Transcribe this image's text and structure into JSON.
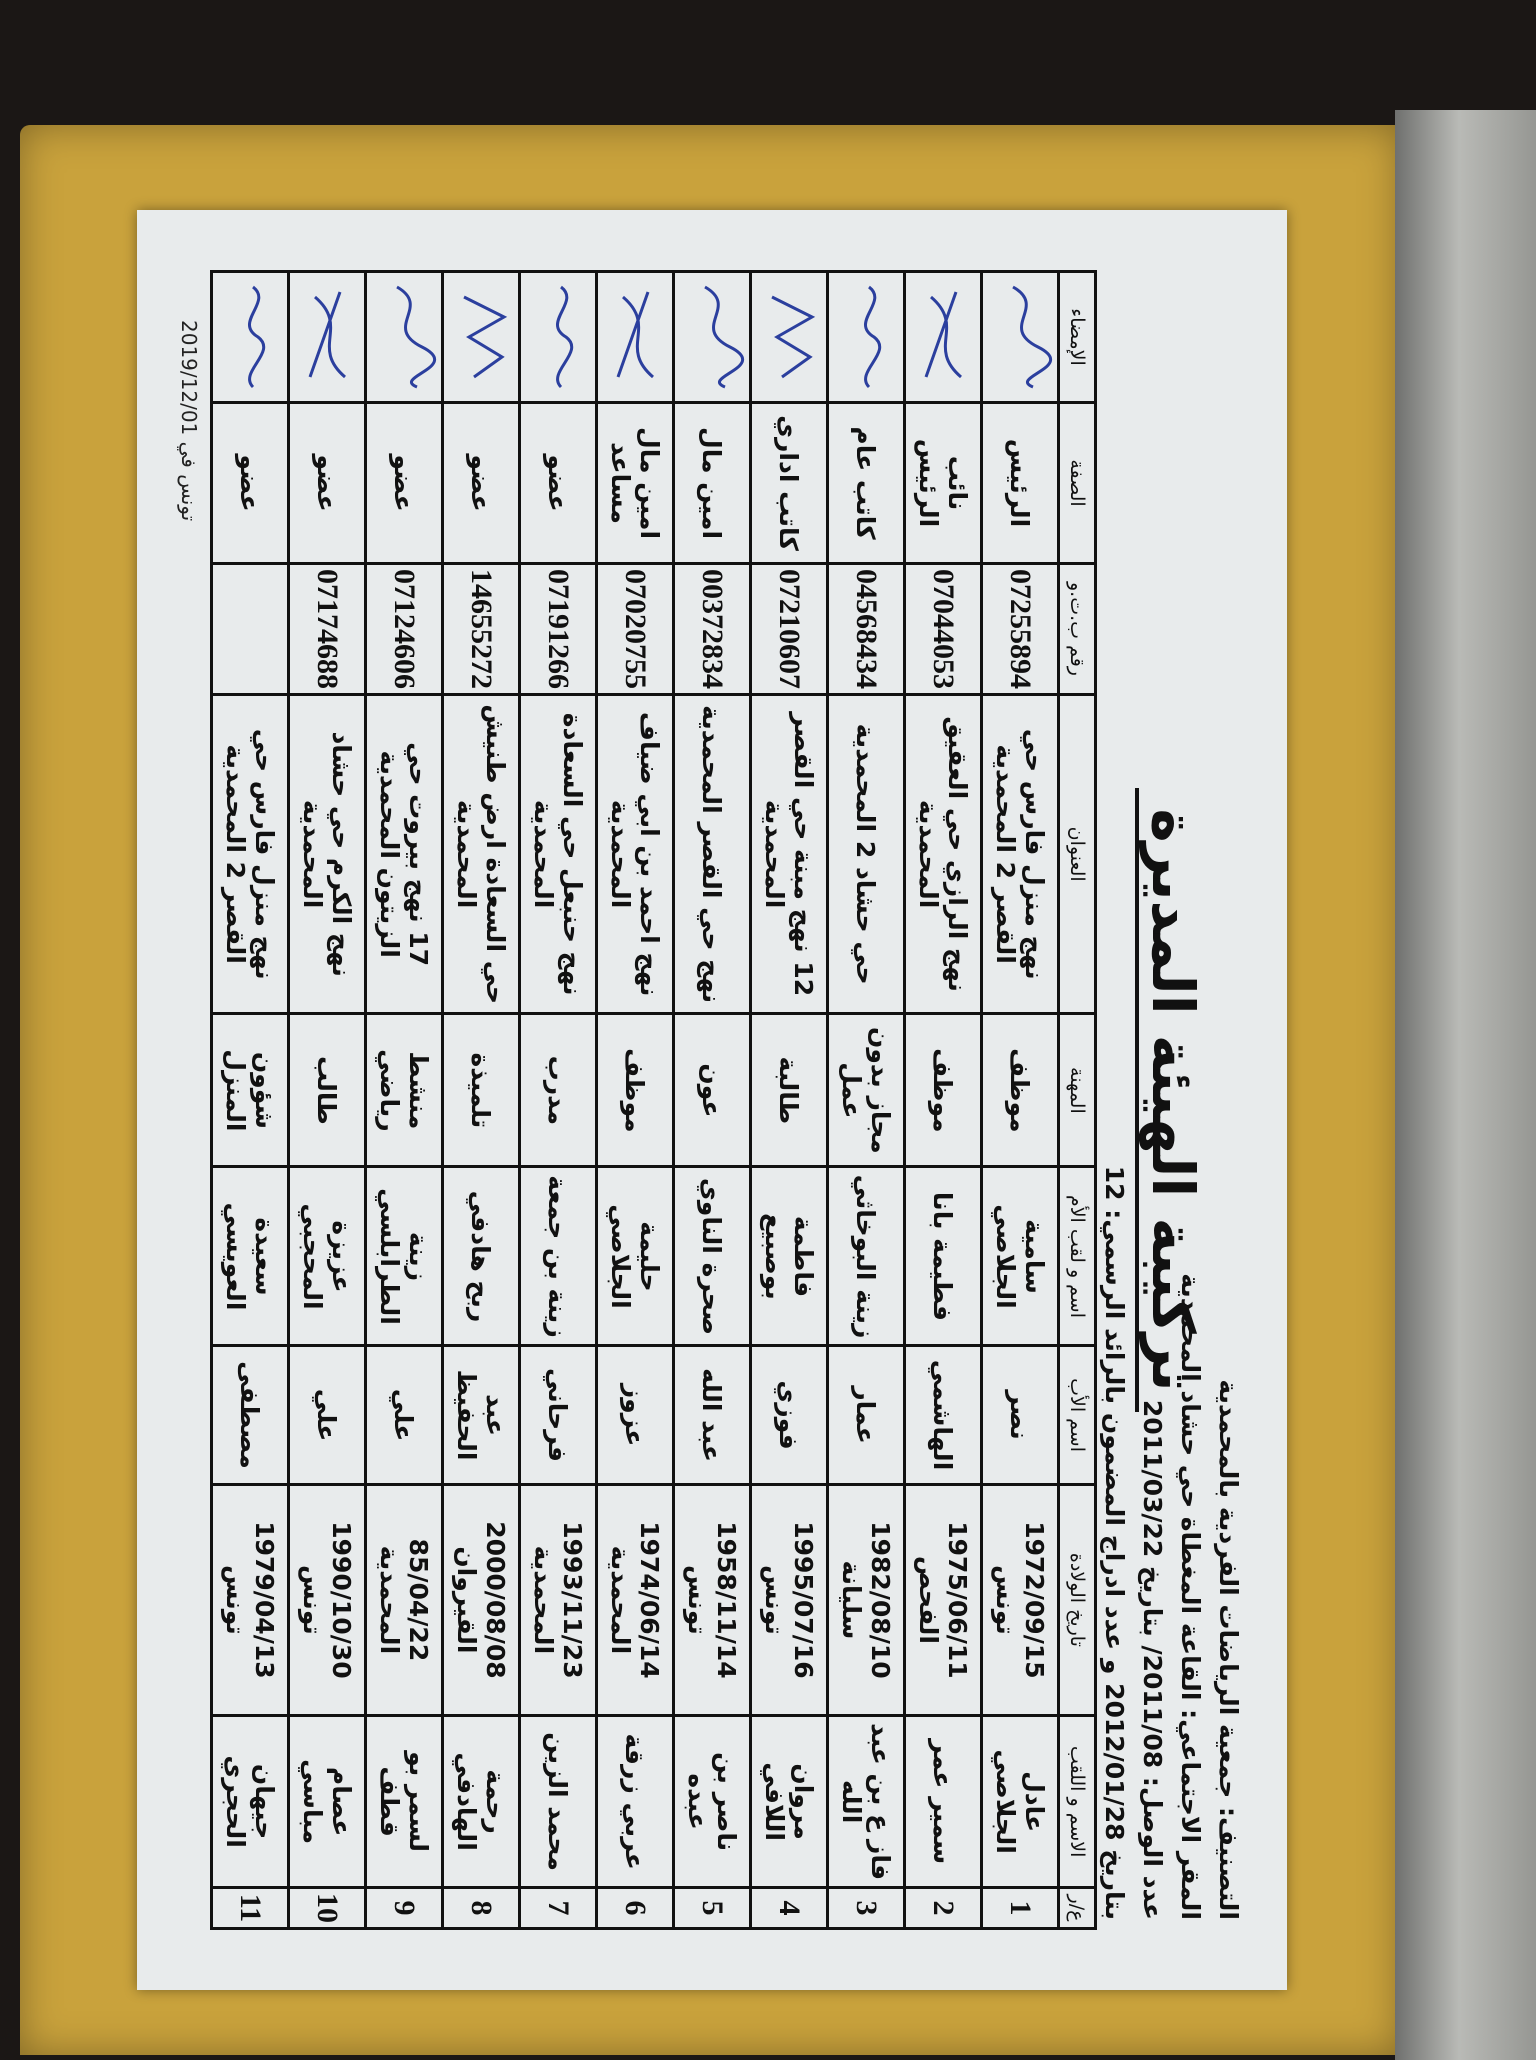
{
  "header": {
    "lines": [
      "التصنيف: جمعية الرياضات الفردية بالمحمدية",
      "المقر الاجتماعي: القاعة المغطاة حي حشاد المحمدية",
      "عدد الوصل: 2011/08/ بتاريخ 2011/03/22",
      "بتاريخ 2012/01/28 و عدد ادراج المضمون بالرائد الرسمي: 12"
    ],
    "title": "تركيبة الهيئة المديرة"
  },
  "table": {
    "columns": [
      "ع/ر",
      "الاسم و اللقب",
      "تاريخ الولادة",
      "اسم الأب",
      "اسم و لقب الأم",
      "المهنة",
      "العنوان",
      "رقم ب.ت.و",
      "الصفة",
      "الإمضاء"
    ],
    "rows": [
      [
        "1",
        "عادل الجلاصي",
        "1972/09/15 تونس",
        "نصر",
        "سامية الجلاصي",
        "موظف",
        "نهج منزل فارس حي القصر 2 المحمدية",
        "07255894",
        "الرئيس"
      ],
      [
        "2",
        "سمير عمر",
        "1975/06/11 الفحص",
        "الهاشمي",
        "فطيمة بانا",
        "موظف",
        "نهج الرازي حي العقيق المحمدية",
        "07044053",
        "نائب الرئيس"
      ],
      [
        "3",
        "فاز ع بن عبد الله",
        "1982/08/10 سليانة",
        "عمار",
        "زينة البوخاثي",
        "مجاز بدون عمل",
        "حي حشاد 2 المحمدية",
        "04568434",
        "كاتب عام"
      ],
      [
        "4",
        "مروان اللافي",
        "1995/07/16 تونس",
        "فوزي",
        "فاطمة بوصبيع",
        "طالبة",
        "12 نهج مبنة حي القصر المحمدية",
        "07210607",
        "كاتب اداري"
      ],
      [
        "5",
        "ناصر بن عبده",
        "1958/11/14 تونس",
        "عبد الله",
        "صحرة الناوي",
        "عون",
        "نهج حي القصر المحمدية",
        "00372834",
        "امين مال"
      ],
      [
        "6",
        "عربي زرقة",
        "1974/06/14 المحمدية",
        "عزوز",
        "حليمة الجلاصي",
        "موظف",
        "نهج احمد بن ابي ضياف المحمدية",
        "07020755",
        "امين مال مساعد"
      ],
      [
        "7",
        "محمد الزين",
        "1993/11/23 المحمدية",
        "فرحاني",
        "زينة بن جمعة",
        "مدرب",
        "نهج حنبعل حي السعادة المحمدية",
        "07191266",
        "عضو"
      ],
      [
        "8",
        "رحمة الهادفي",
        "2000/08/08 القيروان",
        "عبد الحفيظ",
        "ربح هادفي",
        "تلميذة",
        "حي السعادة ارض طنيش المحمدية",
        "14655272",
        "عضو"
      ],
      [
        "9",
        "لسمر بو قطف",
        "85/04/22 المحمدية",
        "علي",
        "زينة الطرابلسي",
        "منشط رياضي",
        "17 نهج بيروت حي الزيتون المحمدية",
        "07124606",
        "عضو"
      ],
      [
        "10",
        "عصام مباسي",
        "1990/10/30 تونس",
        "علي",
        "عزيزة المحجبي",
        "طالب",
        "نهج الكرم حي حشاد المحمدية",
        "07174688",
        "عضو"
      ],
      [
        "11",
        "جيهان الحجري",
        "1979/04/13 تونس",
        "مصطفى",
        "سعيدة العويسي",
        "شؤون المنزل",
        "نهج منزل فارس حي القصر 2 المحمدية",
        "",
        "عضو"
      ]
    ]
  },
  "date": "تونس في 2019/12/01",
  "colors": {
    "ink": "#111111",
    "signature": "#2b3f9e",
    "folder": "#c9a23c",
    "paper": "#e8ebec"
  }
}
